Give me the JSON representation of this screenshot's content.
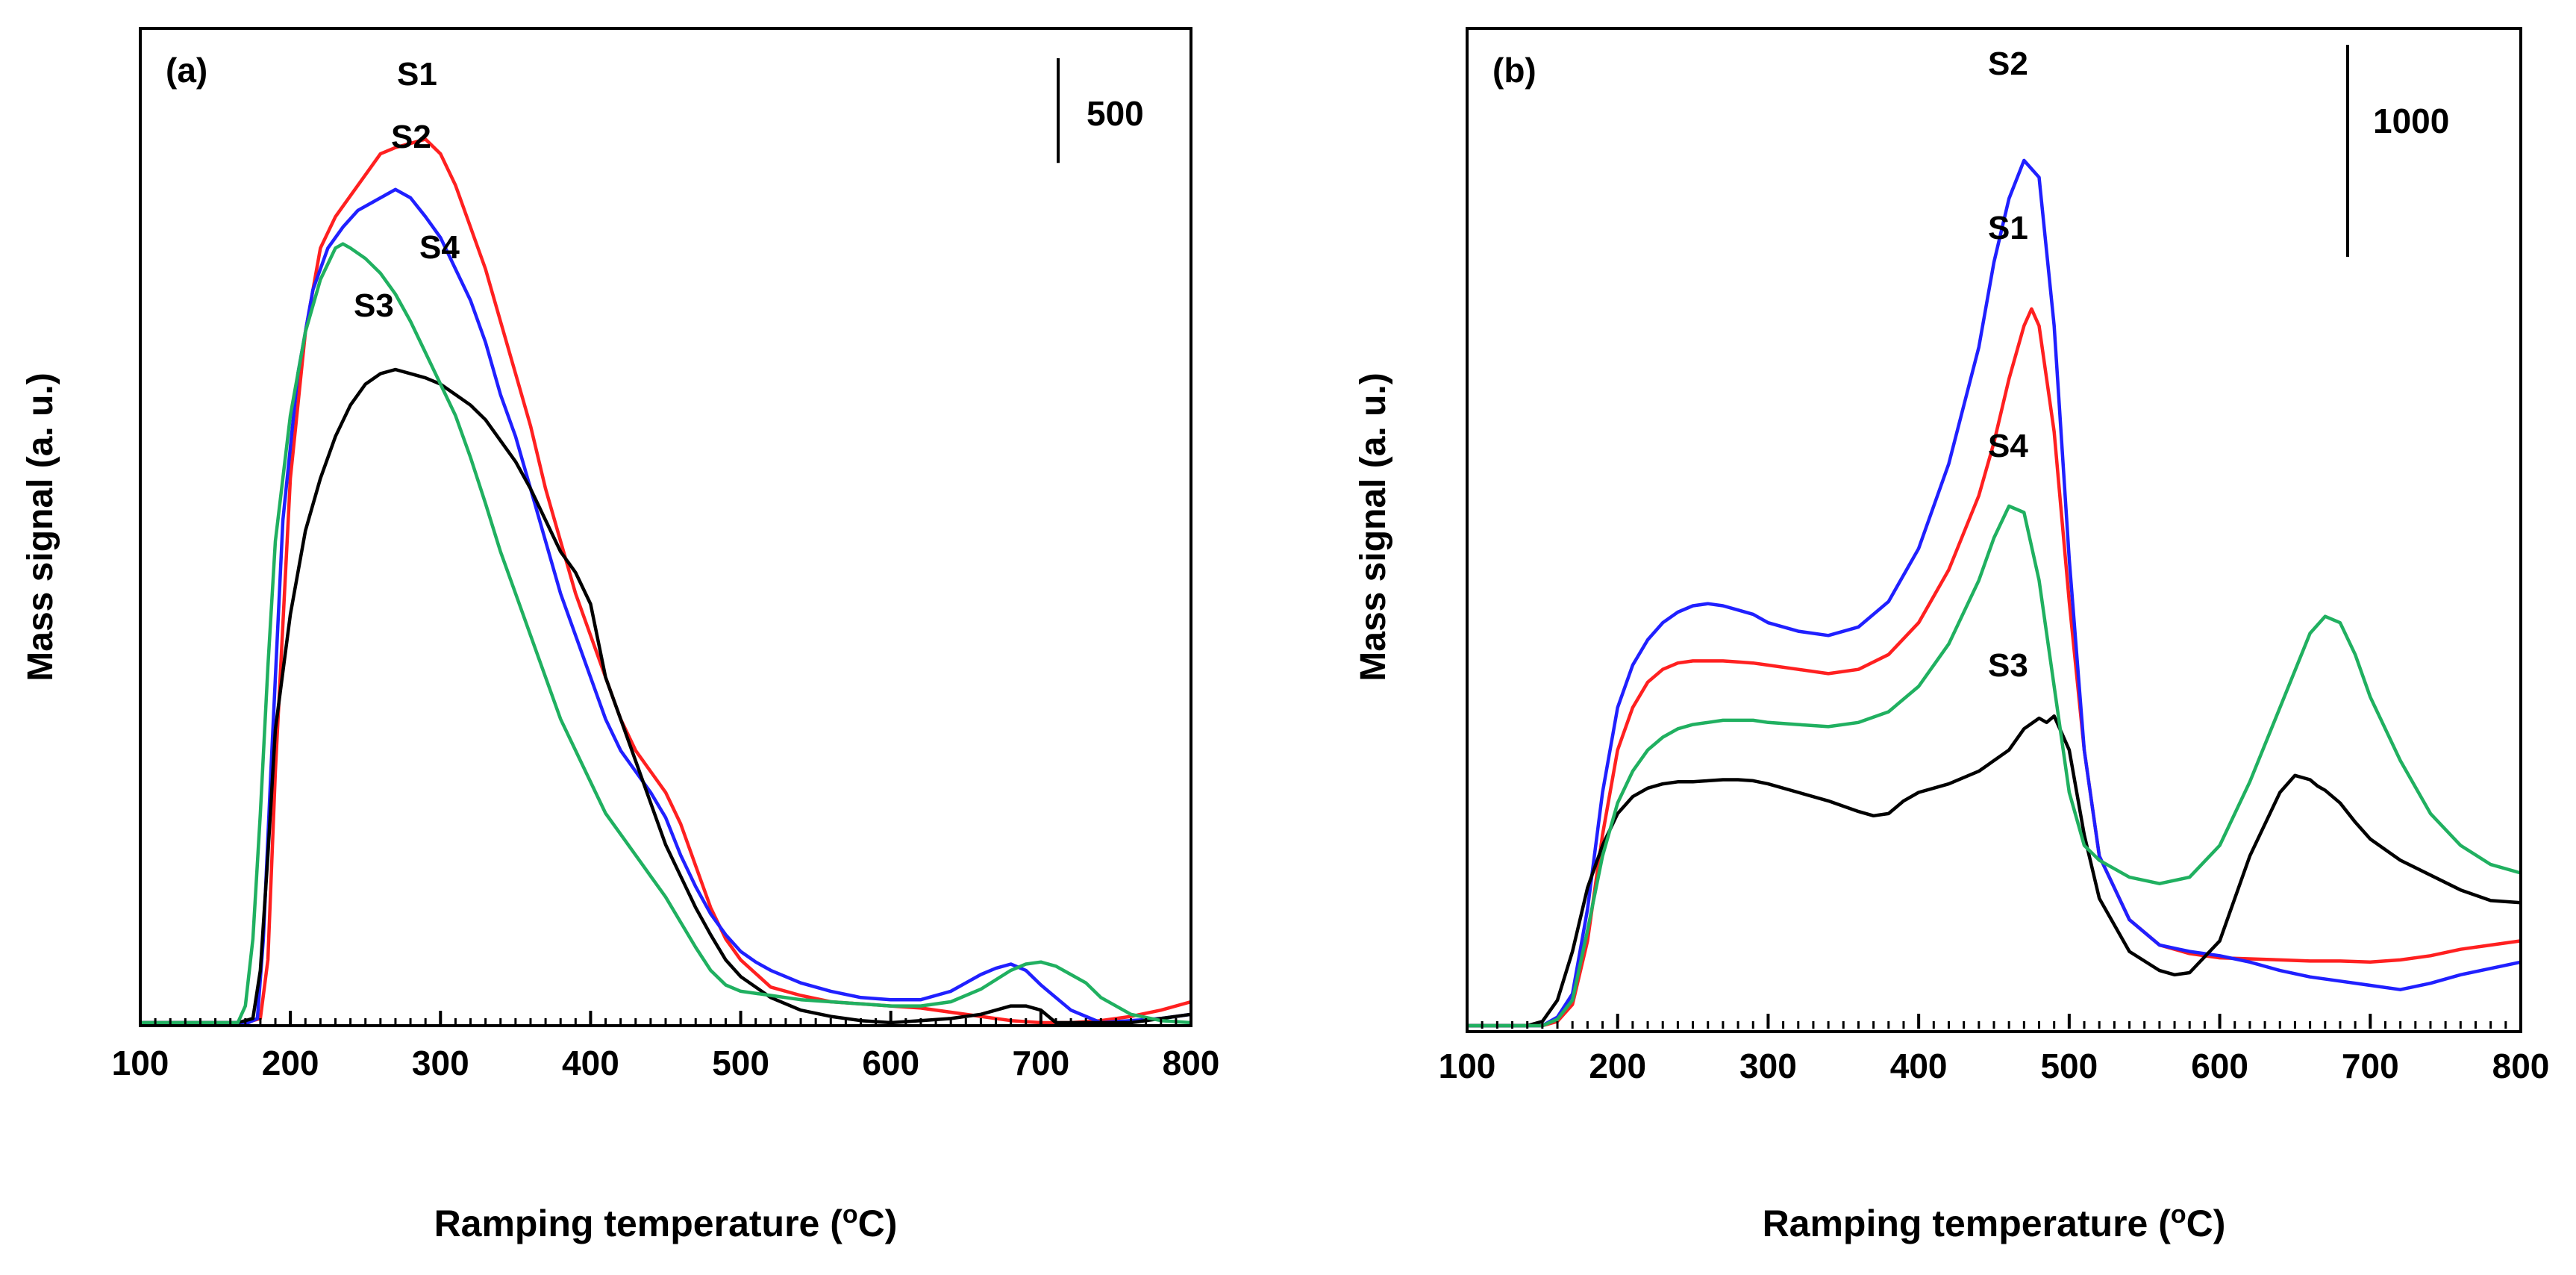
{
  "chart_data": [
    {
      "panel": "(a)",
      "type": "line",
      "xlabel": "Ramping temperature (oC)",
      "ylabel": "Mass signal (a. u.)",
      "xlim": [
        100,
        800
      ],
      "ylim": [
        0,
        4400
      ],
      "x_ticks": [
        "100",
        "200",
        "300",
        "400",
        "500",
        "600",
        "700",
        "800"
      ],
      "scale_bar": {
        "label": "500",
        "value": 500
      },
      "series": [
        {
          "name": "S1",
          "color": "#ff2020",
          "x": [
            100,
            170,
            180,
            185,
            190,
            200,
            210,
            220,
            230,
            240,
            250,
            260,
            270,
            280,
            290,
            300,
            310,
            320,
            330,
            340,
            350,
            360,
            370,
            380,
            390,
            400,
            410,
            420,
            430,
            440,
            450,
            460,
            470,
            480,
            490,
            500,
            520,
            540,
            560,
            580,
            600,
            620,
            640,
            660,
            680,
            700,
            720,
            740,
            760,
            780,
            800
          ],
          "y": [
            0,
            0,
            20,
            300,
            1200,
            2600,
            3300,
            3700,
            3850,
            3950,
            4050,
            4150,
            4180,
            4200,
            4220,
            4150,
            4000,
            3800,
            3600,
            3350,
            3100,
            2850,
            2550,
            2300,
            2050,
            1850,
            1650,
            1450,
            1300,
            1200,
            1100,
            950,
            750,
            550,
            400,
            300,
            170,
            130,
            100,
            90,
            80,
            70,
            50,
            30,
            10,
            0,
            0,
            10,
            30,
            60,
            100
          ]
        },
        {
          "name": "S2",
          "color": "#2020ff",
          "x": [
            100,
            172,
            178,
            182,
            187,
            195,
            205,
            215,
            225,
            235,
            245,
            255,
            265,
            270,
            280,
            290,
            300,
            310,
            320,
            330,
            340,
            350,
            360,
            370,
            380,
            390,
            400,
            410,
            420,
            430,
            440,
            450,
            460,
            470,
            480,
            490,
            500,
            510,
            520,
            540,
            560,
            580,
            600,
            620,
            640,
            650,
            660,
            670,
            680,
            690,
            700,
            720,
            740,
            760,
            780,
            800
          ],
          "y": [
            0,
            0,
            20,
            400,
            1200,
            2400,
            3100,
            3500,
            3700,
            3800,
            3880,
            3920,
            3960,
            3980,
            3940,
            3850,
            3750,
            3600,
            3450,
            3250,
            3000,
            2800,
            2550,
            2300,
            2050,
            1850,
            1650,
            1450,
            1300,
            1200,
            1100,
            980,
            800,
            650,
            520,
            420,
            340,
            290,
            250,
            190,
            150,
            120,
            110,
            110,
            150,
            190,
            230,
            260,
            280,
            250,
            180,
            60,
            0,
            10,
            20,
            40
          ]
        },
        {
          "name": "S3",
          "color": "#000000",
          "x": [
            100,
            165,
            175,
            180,
            185,
            190,
            200,
            210,
            220,
            230,
            240,
            250,
            260,
            270,
            280,
            290,
            300,
            310,
            320,
            330,
            340,
            350,
            360,
            370,
            380,
            390,
            400,
            410,
            420,
            430,
            440,
            450,
            460,
            470,
            480,
            490,
            500,
            510,
            520,
            540,
            560,
            580,
            600,
            620,
            640,
            660,
            670,
            680,
            690,
            700,
            710,
            720,
            740,
            760,
            780,
            800
          ],
          "y": [
            0,
            0,
            20,
            250,
            800,
            1400,
            1950,
            2350,
            2600,
            2800,
            2950,
            3050,
            3100,
            3120,
            3100,
            3080,
            3050,
            3000,
            2950,
            2880,
            2780,
            2680,
            2550,
            2400,
            2250,
            2150,
            2000,
            1650,
            1450,
            1250,
            1050,
            850,
            700,
            550,
            420,
            300,
            220,
            170,
            120,
            60,
            30,
            10,
            0,
            10,
            20,
            40,
            60,
            80,
            80,
            60,
            0,
            0,
            0,
            0,
            20,
            40
          ]
        },
        {
          "name": "S4",
          "color": "#20b060",
          "x": [
            100,
            165,
            170,
            175,
            180,
            185,
            190,
            200,
            210,
            220,
            230,
            235,
            240,
            250,
            260,
            270,
            280,
            290,
            300,
            310,
            320,
            330,
            340,
            350,
            360,
            370,
            380,
            390,
            400,
            410,
            420,
            430,
            440,
            450,
            460,
            470,
            480,
            490,
            500,
            520,
            540,
            560,
            580,
            600,
            620,
            640,
            660,
            680,
            690,
            700,
            710,
            720,
            730,
            740,
            760,
            780,
            800
          ],
          "y": [
            0,
            0,
            80,
            400,
            1000,
            1700,
            2300,
            2900,
            3300,
            3550,
            3700,
            3720,
            3700,
            3650,
            3580,
            3480,
            3350,
            3200,
            3050,
            2900,
            2700,
            2480,
            2250,
            2050,
            1850,
            1650,
            1450,
            1300,
            1150,
            1000,
            900,
            800,
            700,
            600,
            480,
            360,
            250,
            180,
            150,
            130,
            110,
            100,
            90,
            80,
            80,
            100,
            160,
            250,
            280,
            290,
            270,
            230,
            190,
            120,
            40,
            10,
            0
          ]
        }
      ]
    },
    {
      "panel": "(b)",
      "type": "line",
      "xlabel": "Ramping temperature (oC)",
      "ylabel": "Mass signal (a. u.)",
      "xlim": [
        100,
        800
      ],
      "ylim": [
        0,
        4400
      ],
      "x_ticks": [
        "100",
        "200",
        "300",
        "400",
        "500",
        "600",
        "700",
        "800"
      ],
      "scale_bar": {
        "label": "1000",
        "value": 1000
      },
      "series": [
        {
          "name": "S1",
          "color": "#ff2020",
          "x": [
            100,
            150,
            160,
            170,
            180,
            190,
            200,
            210,
            220,
            230,
            240,
            250,
            260,
            270,
            280,
            290,
            300,
            320,
            340,
            360,
            380,
            400,
            420,
            440,
            450,
            460,
            470,
            475,
            480,
            490,
            500,
            510,
            520,
            540,
            560,
            580,
            600,
            620,
            640,
            660,
            680,
            700,
            720,
            740,
            760,
            780,
            800
          ],
          "y": [
            0,
            0,
            20,
            100,
            400,
            900,
            1300,
            1500,
            1620,
            1680,
            1710,
            1720,
            1720,
            1720,
            1715,
            1710,
            1700,
            1680,
            1660,
            1680,
            1750,
            1900,
            2150,
            2500,
            2750,
            3050,
            3300,
            3380,
            3300,
            2800,
            2000,
            1300,
            800,
            500,
            380,
            340,
            320,
            315,
            310,
            305,
            305,
            300,
            310,
            330,
            360,
            380,
            400
          ]
        },
        {
          "name": "S2",
          "color": "#2020ff",
          "x": [
            100,
            150,
            160,
            170,
            180,
            190,
            200,
            210,
            220,
            230,
            240,
            250,
            260,
            270,
            280,
            290,
            300,
            320,
            340,
            360,
            380,
            400,
            420,
            440,
            450,
            460,
            470,
            480,
            490,
            500,
            510,
            520,
            540,
            560,
            580,
            600,
            620,
            640,
            660,
            680,
            700,
            720,
            740,
            760,
            780,
            800
          ],
          "y": [
            0,
            0,
            40,
            150,
            550,
            1100,
            1500,
            1700,
            1820,
            1900,
            1950,
            1980,
            1990,
            1980,
            1960,
            1940,
            1900,
            1860,
            1840,
            1880,
            2000,
            2250,
            2650,
            3200,
            3600,
            3900,
            4080,
            4000,
            3300,
            2200,
            1300,
            800,
            500,
            380,
            350,
            330,
            300,
            260,
            230,
            210,
            190,
            170,
            200,
            240,
            270,
            300
          ]
        },
        {
          "name": "S3",
          "color": "#000000",
          "x": [
            100,
            140,
            150,
            160,
            170,
            180,
            190,
            200,
            210,
            220,
            230,
            240,
            250,
            260,
            270,
            280,
            290,
            300,
            320,
            340,
            360,
            370,
            380,
            390,
            400,
            410,
            420,
            440,
            460,
            470,
            480,
            485,
            490,
            500,
            510,
            520,
            540,
            560,
            570,
            580,
            600,
            620,
            640,
            650,
            660,
            665,
            670,
            680,
            690,
            700,
            720,
            740,
            760,
            780,
            800
          ],
          "y": [
            0,
            0,
            20,
            120,
            350,
            650,
            850,
            1000,
            1080,
            1120,
            1140,
            1150,
            1150,
            1155,
            1160,
            1160,
            1155,
            1140,
            1100,
            1060,
            1010,
            990,
            1000,
            1060,
            1100,
            1120,
            1140,
            1200,
            1300,
            1400,
            1450,
            1430,
            1460,
            1300,
            900,
            600,
            350,
            260,
            240,
            250,
            400,
            800,
            1100,
            1180,
            1160,
            1130,
            1110,
            1050,
            960,
            880,
            780,
            710,
            640,
            590,
            580
          ]
        },
        {
          "name": "S4",
          "color": "#20b060",
          "x": [
            100,
            150,
            160,
            170,
            180,
            190,
            200,
            210,
            220,
            230,
            240,
            250,
            260,
            270,
            280,
            290,
            300,
            320,
            340,
            360,
            380,
            400,
            420,
            440,
            450,
            460,
            470,
            480,
            490,
            500,
            510,
            520,
            540,
            560,
            580,
            600,
            620,
            640,
            660,
            670,
            680,
            690,
            700,
            720,
            740,
            760,
            780,
            800
          ],
          "y": [
            0,
            0,
            30,
            120,
            450,
            800,
            1050,
            1200,
            1300,
            1360,
            1400,
            1420,
            1430,
            1440,
            1440,
            1440,
            1430,
            1420,
            1410,
            1430,
            1480,
            1600,
            1800,
            2100,
            2300,
            2450,
            2420,
            2100,
            1600,
            1100,
            850,
            780,
            700,
            670,
            700,
            850,
            1150,
            1500,
            1850,
            1930,
            1900,
            1750,
            1550,
            1250,
            1000,
            850,
            760,
            720
          ]
        }
      ]
    }
  ]
}
